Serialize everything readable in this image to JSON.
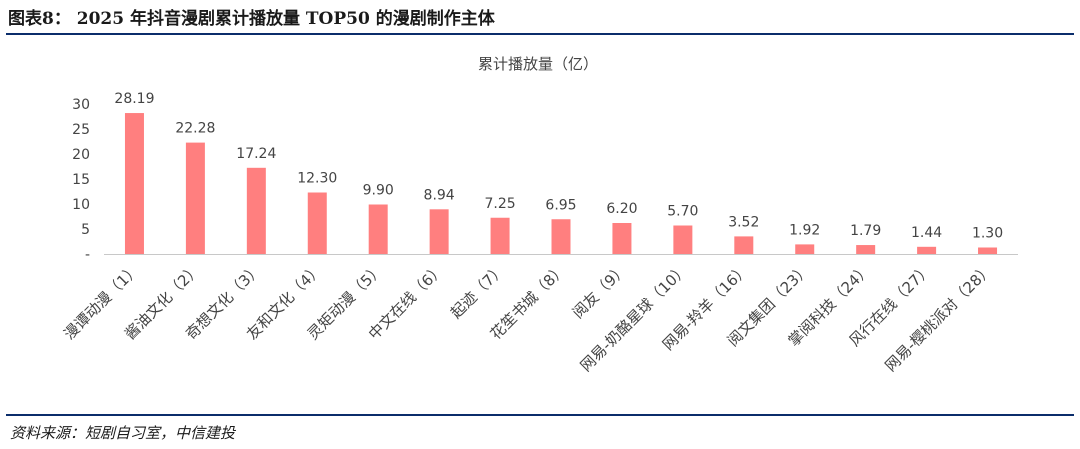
{
  "figure": {
    "title": "图表8： 2025 年抖音漫剧累计播放量 TOP50 的漫剧制作主体",
    "source": "资料来源：短剧自习室，中信建投"
  },
  "colors": {
    "bar": "#ff7f7f",
    "rule": "#0b2d6b",
    "axis": "#c8c8c8"
  },
  "chart_data": {
    "type": "bar",
    "title": "累计播放量（亿）",
    "xlabel": "",
    "ylabel": "",
    "categories": [
      "漫谭动漫（1）",
      "酱油文化（2）",
      "奇想文化（3）",
      "友和文化（4）",
      "灵矩动漫（5）",
      "中文在线（6）",
      "起迹（7）",
      "花笙书城（8）",
      "阅友（9）",
      "网易-奶酪星球（10）",
      "网易-羚羊（16）",
      "阅文集团（23）",
      "掌阅科技（24）",
      "风行在线（27）",
      "网易-樱桃派对（28）"
    ],
    "values": [
      28.19,
      22.28,
      17.24,
      12.3,
      9.9,
      8.94,
      7.25,
      6.95,
      6.2,
      5.7,
      3.52,
      1.92,
      1.79,
      1.44,
      1.3
    ],
    "value_labels": [
      "28.19",
      "22.28",
      "17.24",
      "12.30",
      "9.90",
      "8.94",
      "7.25",
      "6.95",
      "6.20",
      "5.70",
      "3.52",
      "1.92",
      "1.79",
      "1.44",
      "1.30"
    ],
    "yticks": [
      "-",
      "5",
      "10",
      "15",
      "20",
      "25",
      "30"
    ],
    "ylim": [
      0,
      30
    ],
    "grid": false,
    "legend": "none"
  }
}
